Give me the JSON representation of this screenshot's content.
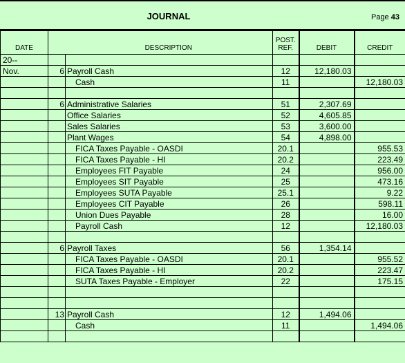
{
  "header": {
    "title": "JOURNAL",
    "page_label": "Page",
    "page_number": "43"
  },
  "columns": {
    "date": "DATE",
    "description": "DESCRIPTION",
    "post_top": "POST.",
    "post_bottom": "REF.",
    "debit": "DEBIT",
    "credit": "CREDIT"
  },
  "rows": [
    {
      "date": "20--",
      "day": "",
      "desc": "",
      "indent": false,
      "ref": "",
      "debit": "",
      "credit": ""
    },
    {
      "date": "Nov.",
      "day": "6",
      "desc": "Payroll Cash",
      "indent": false,
      "ref": "12",
      "debit": "12,180.03",
      "credit": ""
    },
    {
      "date": "",
      "day": "",
      "desc": "Cash",
      "indent": true,
      "ref": "11",
      "debit": "",
      "credit": "12,180.03"
    },
    {
      "date": "",
      "day": "",
      "desc": "",
      "indent": false,
      "ref": "",
      "debit": "",
      "credit": ""
    },
    {
      "date": "",
      "day": "6",
      "desc": "Administrative Salaries",
      "indent": false,
      "ref": "51",
      "debit": "2,307.69",
      "credit": ""
    },
    {
      "date": "",
      "day": "",
      "desc": "Office Salaries",
      "indent": false,
      "ref": "52",
      "debit": "4,605.85",
      "credit": ""
    },
    {
      "date": "",
      "day": "",
      "desc": "Sales Salaries",
      "indent": false,
      "ref": "53",
      "debit": "3,600.00",
      "credit": ""
    },
    {
      "date": "",
      "day": "",
      "desc": "Plant Wages",
      "indent": false,
      "ref": "54",
      "debit": "4,898.00",
      "credit": ""
    },
    {
      "date": "",
      "day": "",
      "desc": "FICA Taxes Payable - OASDI",
      "indent": true,
      "ref": "20.1",
      "debit": "",
      "credit": "955.53"
    },
    {
      "date": "",
      "day": "",
      "desc": "FICA Taxes Payable - HI",
      "indent": true,
      "ref": "20.2",
      "debit": "",
      "credit": "223.49"
    },
    {
      "date": "",
      "day": "",
      "desc": "Employees FIT Payable",
      "indent": true,
      "ref": "24",
      "debit": "",
      "credit": "956.00"
    },
    {
      "date": "",
      "day": "",
      "desc": "Employees SIT Payable",
      "indent": true,
      "ref": "25",
      "debit": "",
      "credit": "473.16"
    },
    {
      "date": "",
      "day": "",
      "desc": "Employees SUTA Payable",
      "indent": true,
      "ref": "25.1",
      "debit": "",
      "credit": "9.22"
    },
    {
      "date": "",
      "day": "",
      "desc": "Employees CIT Payable",
      "indent": true,
      "ref": "26",
      "debit": "",
      "credit": "598.11"
    },
    {
      "date": "",
      "day": "",
      "desc": "Union Dues Payable",
      "indent": true,
      "ref": "28",
      "debit": "",
      "credit": "16.00"
    },
    {
      "date": "",
      "day": "",
      "desc": "Payroll Cash",
      "indent": true,
      "ref": "12",
      "debit": "",
      "credit": "12,180.03"
    },
    {
      "date": "",
      "day": "",
      "desc": "",
      "indent": false,
      "ref": "",
      "debit": "",
      "credit": ""
    },
    {
      "date": "",
      "day": "6",
      "desc": "Payroll Taxes",
      "indent": false,
      "ref": "56",
      "debit": "1,354.14",
      "credit": ""
    },
    {
      "date": "",
      "day": "",
      "desc": "FICA Taxes Payable - OASDI",
      "indent": true,
      "ref": "20.1",
      "debit": "",
      "credit": "955.52"
    },
    {
      "date": "",
      "day": "",
      "desc": "FICA Taxes Payable - HI",
      "indent": true,
      "ref": "20.2",
      "debit": "",
      "credit": "223.47"
    },
    {
      "date": "",
      "day": "",
      "desc": "SUTA Taxes Payable - Employer",
      "indent": true,
      "ref": "22",
      "debit": "",
      "credit": "175.15"
    },
    {
      "date": "",
      "day": "",
      "desc": "",
      "indent": false,
      "ref": "",
      "debit": "",
      "credit": ""
    },
    {
      "date": "",
      "day": "",
      "desc": "",
      "indent": false,
      "ref": "",
      "debit": "",
      "credit": ""
    },
    {
      "date": "",
      "day": "13",
      "desc": "Payroll Cash",
      "indent": false,
      "ref": "12",
      "debit": "1,494.06",
      "credit": ""
    },
    {
      "date": "",
      "day": "",
      "desc": "Cash",
      "indent": true,
      "ref": "11",
      "debit": "",
      "credit": "1,494.06"
    },
    {
      "date": "",
      "day": "",
      "desc": "",
      "indent": false,
      "ref": "",
      "debit": "",
      "credit": ""
    }
  ]
}
